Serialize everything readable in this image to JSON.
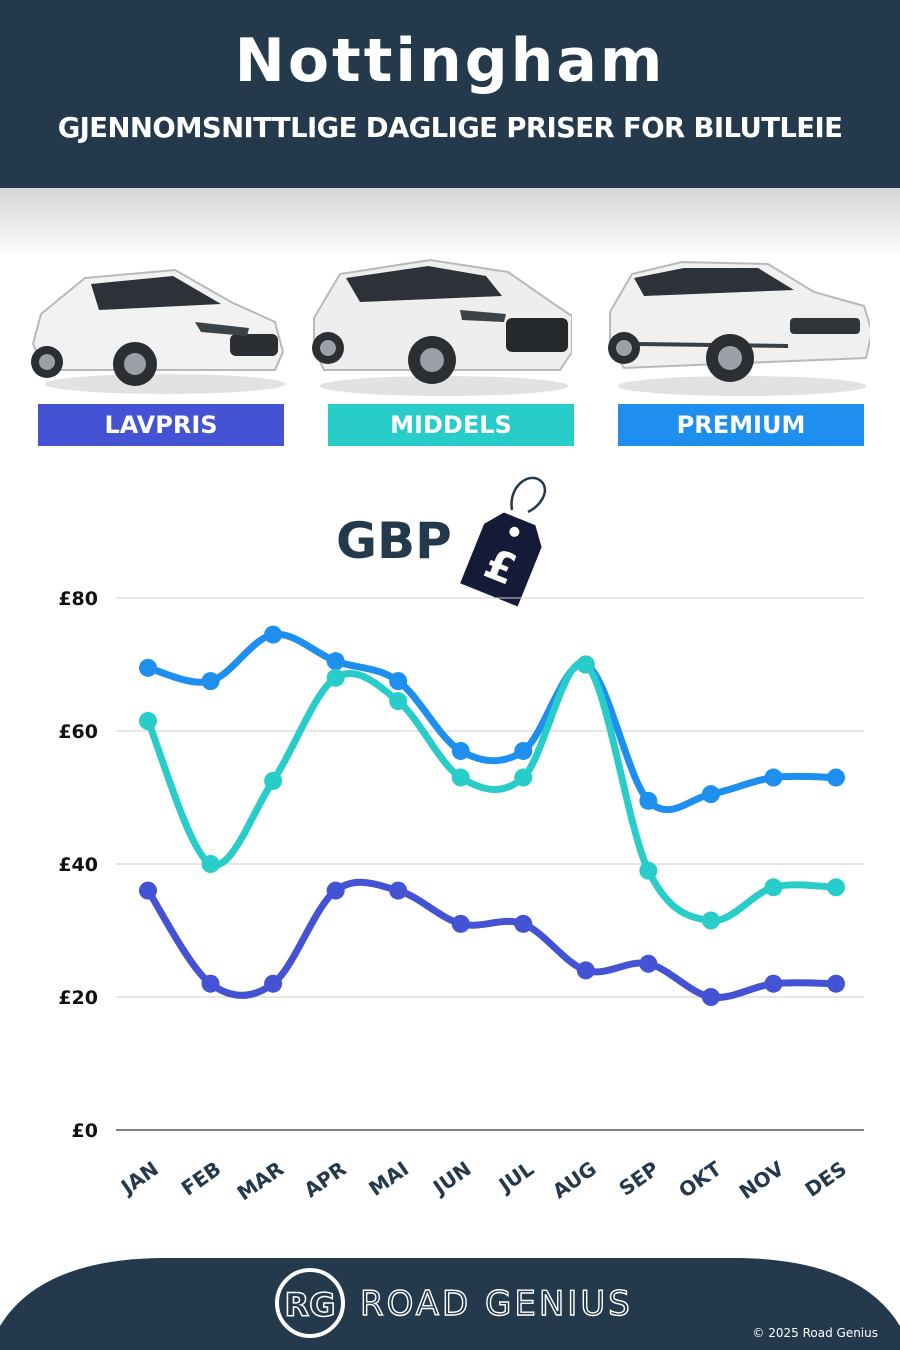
{
  "header": {
    "title": "Nottingham",
    "subtitle": "GJENNOMSNITTLIGE DAGLIGE PRISER FOR BILUTLEIE"
  },
  "categories": [
    {
      "label": "LAVPRIS",
      "color": "#4452d4"
    },
    {
      "label": "MIDDELS",
      "color": "#28cdc9"
    },
    {
      "label": "PREMIUM",
      "color": "#1e8fee"
    }
  ],
  "currency_label": "GBP",
  "tag_symbol": "£",
  "chart_data": {
    "type": "line",
    "x": [
      "JAN",
      "FEB",
      "MAR",
      "APR",
      "MAI",
      "JUN",
      "JUL",
      "AUG",
      "SEP",
      "OKT",
      "NOV",
      "DES"
    ],
    "series": [
      {
        "name": "PREMIUM",
        "color": "#1e8fee",
        "values": [
          69.5,
          67.5,
          74.5,
          70.5,
          67.5,
          57,
          57,
          70,
          49.5,
          50.5,
          53,
          53
        ]
      },
      {
        "name": "MIDDELS",
        "color": "#28cdc9",
        "values": [
          61.5,
          40,
          52.5,
          68,
          64.5,
          53,
          53,
          70,
          39,
          31.5,
          36.5,
          36.5
        ]
      },
      {
        "name": "LAVPRIS",
        "color": "#4452d4",
        "values": [
          36,
          22,
          22,
          36,
          36,
          31,
          31,
          24,
          25,
          20,
          22,
          22
        ]
      }
    ],
    "yticks": [
      "£0",
      "£20",
      "£40",
      "£60",
      "£80"
    ],
    "ytick_values": [
      0,
      20,
      40,
      60,
      80
    ],
    "ylim": [
      0,
      80
    ],
    "grid": true
  },
  "footer": {
    "logo_text": "RG",
    "brand": "ROAD GENIUS",
    "copyright": "© 2025 Road Genius"
  }
}
